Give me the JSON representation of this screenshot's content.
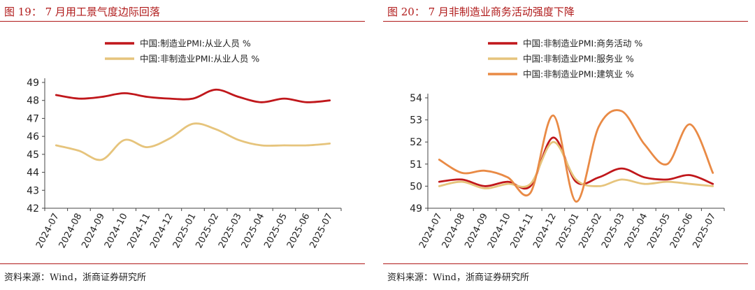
{
  "colors": {
    "title_red": "#b01a1a",
    "series_red": "#c0171b",
    "series_gold": "#e6c47c",
    "series_orange": "#e98a45"
  },
  "left": {
    "title": "图 19：  7 月用工景气度边际回落",
    "source": "资料来源：Wind，浙商证券研究所"
  },
  "right": {
    "title": "图 20：  7 月非制造业商务活动强度下降",
    "source": "资料来源：Wind，浙商证券研究所"
  },
  "chart_data": [
    {
      "type": "line",
      "title": "7 月用工景气度边际回落",
      "categories": [
        "2024-07",
        "2024-08",
        "2024-09",
        "2024-10",
        "2024-11",
        "2024-12",
        "2025-01",
        "2025-02",
        "2025-03",
        "2025-04",
        "2025-05",
        "2025-06",
        "2025-07"
      ],
      "series": [
        {
          "name": "中国:制造业PMI:从业人员 %",
          "color": "#c0171b",
          "values": [
            48.3,
            48.1,
            48.2,
            48.4,
            48.2,
            48.1,
            48.1,
            48.6,
            48.2,
            47.9,
            48.1,
            47.9,
            48.0
          ]
        },
        {
          "name": "中国:非制造业PMI:从业人员 %",
          "color": "#e6c47c",
          "values": [
            45.5,
            45.2,
            44.7,
            45.8,
            45.4,
            45.9,
            46.7,
            46.4,
            45.8,
            45.5,
            45.5,
            45.5,
            45.6
          ]
        }
      ],
      "ylim": [
        42,
        49
      ],
      "yticks": [
        42,
        43,
        44,
        45,
        46,
        47,
        48,
        49
      ],
      "legend": "top-center",
      "grid": false
    },
    {
      "type": "line",
      "title": "7 月非制造业商务活动强度下降",
      "categories": [
        "2024-07",
        "2024-08",
        "2024-09",
        "2024-10",
        "2024-11",
        "2024-12",
        "2025-01",
        "2025-02",
        "2025-03",
        "2025-04",
        "2025-05",
        "2025-06",
        "2025-07"
      ],
      "series": [
        {
          "name": "中国:非制造业PMI:商务活动 %",
          "color": "#c0171b",
          "values": [
            50.2,
            50.3,
            50.0,
            50.2,
            50.0,
            52.2,
            50.2,
            50.4,
            50.8,
            50.4,
            50.3,
            50.5,
            50.1
          ]
        },
        {
          "name": "中国:非制造业PMI:服务业 %",
          "color": "#e6c47c",
          "values": [
            50.0,
            50.2,
            49.9,
            50.1,
            50.1,
            52.0,
            50.3,
            50.0,
            50.3,
            50.1,
            50.2,
            50.1,
            50.0
          ]
        },
        {
          "name": "中国:非制造业PMI:建筑业 %",
          "color": "#e98a45",
          "values": [
            51.2,
            50.6,
            50.7,
            50.4,
            49.7,
            53.2,
            49.3,
            52.7,
            53.4,
            51.9,
            51.0,
            52.8,
            50.6
          ]
        }
      ],
      "ylim": [
        49,
        54
      ],
      "yticks": [
        49,
        50,
        51,
        52,
        53,
        54
      ],
      "legend": "top-center",
      "grid": false
    }
  ]
}
